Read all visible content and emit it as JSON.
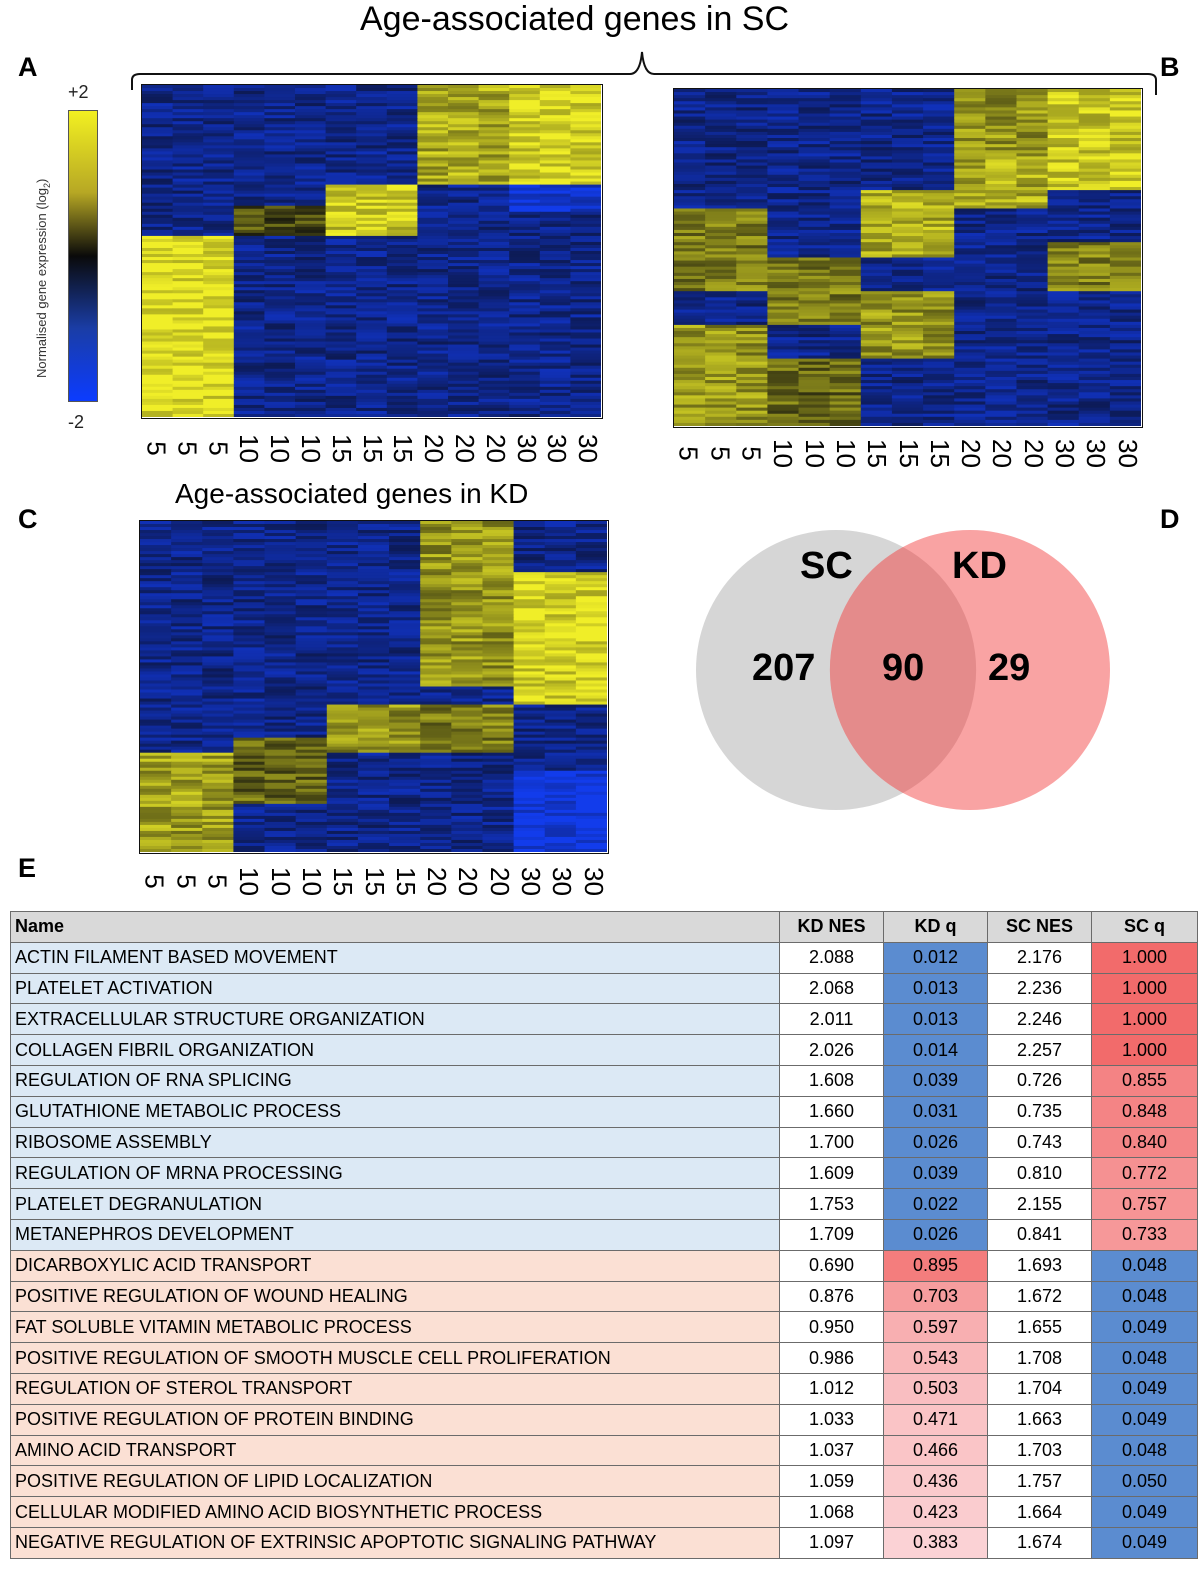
{
  "figure": {
    "panel_letters": {
      "a": "A",
      "b": "B",
      "c": "C",
      "d": "D",
      "e": "E"
    },
    "title_sc": "Age-associated genes in SC",
    "title_kd": "Age-associated genes in KD",
    "colorbar": {
      "title": "Normalised gene expression (log",
      "title_sub": "2",
      "title_end": ")",
      "max_label": "+2",
      "min_label": "-2",
      "colors": {
        "high": "#f2f021",
        "mid": "#0a0a0a",
        "low": "#0c3cff"
      }
    },
    "heatmap_a_xlabels": [
      "5",
      "5",
      "5",
      "10",
      "10",
      "10",
      "15",
      "15",
      "15",
      "20",
      "20",
      "20",
      "30",
      "30",
      "30"
    ],
    "heatmap_b_xlabels": [
      "5",
      "5",
      "5",
      "10",
      "10",
      "10",
      "15",
      "15",
      "15",
      "20",
      "20",
      "20",
      "30",
      "30",
      "30"
    ],
    "heatmap_c_xlabels": [
      "5",
      "5",
      "5",
      "10",
      "10",
      "10",
      "15",
      "15",
      "15",
      "20",
      "20",
      "20",
      "30",
      "30",
      "30"
    ],
    "venn": {
      "left_label": "SC",
      "right_label": "KD",
      "left_only": "207",
      "overlap": "90",
      "right_only": "29",
      "left_color": "#d6d6d6",
      "right_color": "#f9a3a3",
      "overlap_color": "#e48b8b"
    }
  },
  "chart_data": {
    "type": "table",
    "columns": [
      "Name",
      "KD NES",
      "KD q",
      "SC NES",
      "SC q"
    ],
    "rows": [
      {
        "name": "ACTIN FILAMENT BASED MOVEMENT",
        "kd_nes": "2.088",
        "kd_q": "0.012",
        "sc_nes": "2.176",
        "sc_q": "1.000",
        "group": "kd"
      },
      {
        "name": "PLATELET ACTIVATION",
        "kd_nes": "2.068",
        "kd_q": "0.013",
        "sc_nes": "2.236",
        "sc_q": "1.000",
        "group": "kd"
      },
      {
        "name": "EXTRACELLULAR STRUCTURE ORGANIZATION",
        "kd_nes": "2.011",
        "kd_q": "0.013",
        "sc_nes": "2.246",
        "sc_q": "1.000",
        "group": "kd"
      },
      {
        "name": "COLLAGEN FIBRIL ORGANIZATION",
        "kd_nes": "2.026",
        "kd_q": "0.014",
        "sc_nes": "2.257",
        "sc_q": "1.000",
        "group": "kd"
      },
      {
        "name": "REGULATION OF RNA SPLICING",
        "kd_nes": "1.608",
        "kd_q": "0.039",
        "sc_nes": "0.726",
        "sc_q": "0.855",
        "group": "kd"
      },
      {
        "name": "GLUTATHIONE METABOLIC PROCESS",
        "kd_nes": "1.660",
        "kd_q": "0.031",
        "sc_nes": "0.735",
        "sc_q": "0.848",
        "group": "kd"
      },
      {
        "name": "RIBOSOME ASSEMBLY",
        "kd_nes": "1.700",
        "kd_q": "0.026",
        "sc_nes": "0.743",
        "sc_q": "0.840",
        "group": "kd"
      },
      {
        "name": "REGULATION OF MRNA PROCESSING",
        "kd_nes": "1.609",
        "kd_q": "0.039",
        "sc_nes": "0.810",
        "sc_q": "0.772",
        "group": "kd"
      },
      {
        "name": "PLATELET DEGRANULATION",
        "kd_nes": "1.753",
        "kd_q": "0.022",
        "sc_nes": "2.155",
        "sc_q": "0.757",
        "group": "kd"
      },
      {
        "name": "METANEPHROS DEVELOPMENT",
        "kd_nes": "1.709",
        "kd_q": "0.026",
        "sc_nes": "0.841",
        "sc_q": "0.733",
        "group": "kd"
      },
      {
        "name": "DICARBOXYLIC ACID TRANSPORT",
        "kd_nes": "0.690",
        "kd_q": "0.895",
        "sc_nes": "1.693",
        "sc_q": "0.048",
        "group": "sc"
      },
      {
        "name": "POSITIVE REGULATION OF WOUND HEALING",
        "kd_nes": "0.876",
        "kd_q": "0.703",
        "sc_nes": "1.672",
        "sc_q": "0.048",
        "group": "sc"
      },
      {
        "name": "FAT SOLUBLE VITAMIN METABOLIC PROCESS",
        "kd_nes": "0.950",
        "kd_q": "0.597",
        "sc_nes": "1.655",
        "sc_q": "0.049",
        "group": "sc"
      },
      {
        "name": "POSITIVE REGULATION OF SMOOTH MUSCLE CELL PROLIFERATION",
        "kd_nes": "0.986",
        "kd_q": "0.543",
        "sc_nes": "1.708",
        "sc_q": "0.048",
        "group": "sc"
      },
      {
        "name": "REGULATION OF STEROL TRANSPORT",
        "kd_nes": "1.012",
        "kd_q": "0.503",
        "sc_nes": "1.704",
        "sc_q": "0.049",
        "group": "sc"
      },
      {
        "name": "POSITIVE REGULATION OF PROTEIN BINDING",
        "kd_nes": "1.033",
        "kd_q": "0.471",
        "sc_nes": "1.663",
        "sc_q": "0.049",
        "group": "sc"
      },
      {
        "name": "AMINO ACID TRANSPORT",
        "kd_nes": "1.037",
        "kd_q": "0.466",
        "sc_nes": "1.703",
        "sc_q": "0.048",
        "group": "sc"
      },
      {
        "name": "POSITIVE REGULATION OF LIPID LOCALIZATION",
        "kd_nes": "1.059",
        "kd_q": "0.436",
        "sc_nes": "1.757",
        "sc_q": "0.050",
        "group": "sc"
      },
      {
        "name": "CELLULAR MODIFIED AMINO ACID BIOSYNTHETIC PROCESS",
        "kd_nes": "1.068",
        "kd_q": "0.423",
        "sc_nes": "1.664",
        "sc_q": "0.049",
        "group": "sc"
      },
      {
        "name": "NEGATIVE REGULATION OF EXTRINSIC APOPTOTIC SIGNALING PATHWAY",
        "kd_nes": "1.097",
        "kd_q": "0.383",
        "sc_nes": "1.674",
        "sc_q": "0.049",
        "group": "sc"
      }
    ],
    "colors": {
      "kd_name_bg": "#dce9f5",
      "sc_name_bg": "#fbe0d4",
      "low_q": "#5b8cd0",
      "high_q_strong": "#f26b6b",
      "high_q_light": "#fbd3d6"
    }
  }
}
